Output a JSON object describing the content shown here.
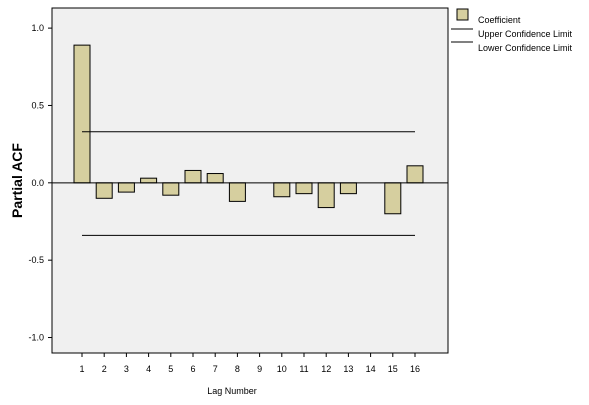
{
  "chart_data": {
    "type": "bar",
    "categories": [
      "1",
      "2",
      "3",
      "4",
      "5",
      "6",
      "7",
      "8",
      "9",
      "10",
      "11",
      "12",
      "13",
      "14",
      "15",
      "16"
    ],
    "values": [
      0.89,
      -0.1,
      -0.06,
      0.03,
      -0.08,
      0.08,
      0.06,
      -0.12,
      0.0,
      -0.09,
      -0.07,
      -0.16,
      -0.07,
      0.0,
      -0.2,
      0.11
    ],
    "upper_confidence_limit": 0.33,
    "lower_confidence_limit": -0.34,
    "xlabel": "Lag Number",
    "ylabel": "Partial ACF",
    "ylim": [
      -1.1,
      1.13
    ],
    "yticks": [
      1.0,
      0.5,
      0.0,
      -0.5,
      -1.0
    ],
    "ytick_labels": [
      "1.0",
      "0.5",
      "0.0",
      "-0.5",
      "-1.0"
    ],
    "legend": {
      "placement": "right-top",
      "entries": [
        "Coefficient",
        "Upper Confidence Limit",
        "Lower Confidence Limit"
      ]
    },
    "colors": {
      "bar_fill": "#d6cf9f",
      "bar_stroke": "#000000",
      "plot_background": "#f0f0f0",
      "line": "#000000"
    },
    "grid": false
  }
}
